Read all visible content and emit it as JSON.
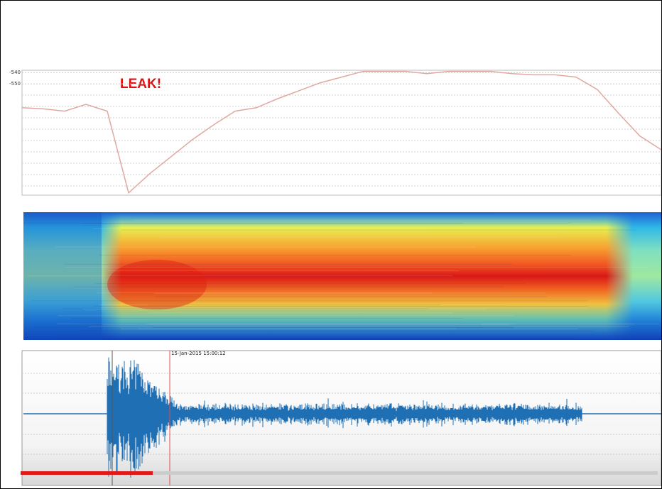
{
  "chart_data": {
    "type": "line",
    "annotation": "LEAK!",
    "marker_label": "15-Jan-2015 15:00:12",
    "ylim": [
      -648,
      -538
    ],
    "yticks": [
      -540,
      -550
    ],
    "series": [
      {
        "color": "#e0a8a0",
        "values": [
          -571,
          -572,
          -574,
          -568,
          -574,
          -646,
          -629,
          -614,
          -599,
          -586,
          -574,
          -571,
          -563,
          -556,
          -549,
          -544,
          -539,
          -539,
          -539,
          -541,
          -539,
          -539,
          -539,
          -541,
          -542,
          -542,
          -544,
          -555,
          -576,
          -596,
          -608
        ]
      }
    ]
  }
}
